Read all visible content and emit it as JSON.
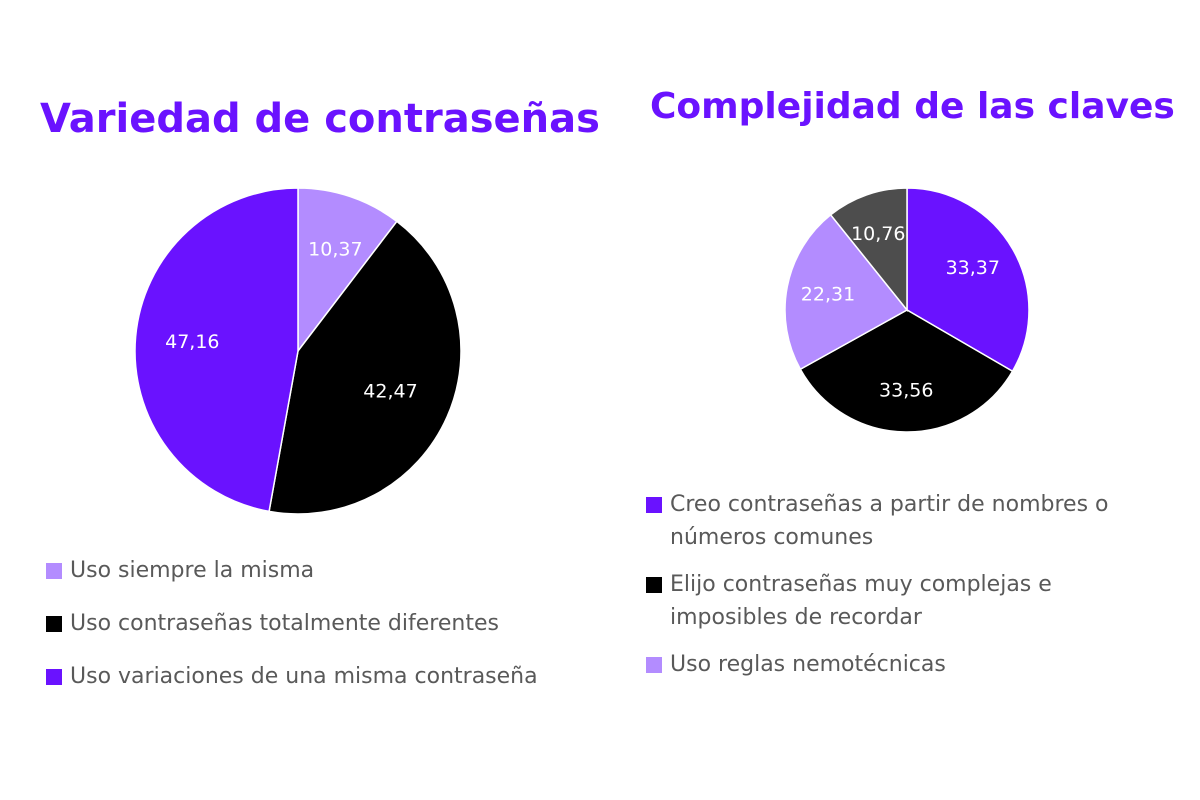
{
  "chart_data": [
    {
      "type": "pie",
      "title": "Variedad de contraseñas",
      "slices": [
        {
          "name": "Uso siempre la misma",
          "value": 10.37,
          "label": "10,37",
          "color": "#b38cff"
        },
        {
          "name": "Uso contraseñas totalmente diferentes",
          "value": 42.47,
          "label": "42,47",
          "color": "#000000"
        },
        {
          "name": "Uso variaciones de una misma contraseña",
          "value": 47.16,
          "label": "47,16",
          "color": "#6a12ff"
        }
      ],
      "legend": "bottom",
      "start_angle": "12 o'clock",
      "direction": "clockwise"
    },
    {
      "type": "pie",
      "title": "Complejidad de las claves",
      "slices": [
        {
          "name": "Creo contraseñas a partir de nombres o números comunes",
          "value": 33.37,
          "label": "33,37",
          "color": "#6a12ff"
        },
        {
          "name": "Elijo contraseñas muy complejas e imposibles de recordar",
          "value": 33.56,
          "label": "33,56",
          "color": "#000000"
        },
        {
          "name": "Uso reglas nemotécnicas",
          "value": 22.31,
          "label": "22,31",
          "color": "#b38cff"
        },
        {
          "name": "",
          "value": 10.76,
          "label": "10,76",
          "color": "#4d4d4d"
        }
      ],
      "legend": "bottom",
      "start_angle": "12 o'clock",
      "direction": "clockwise"
    }
  ]
}
